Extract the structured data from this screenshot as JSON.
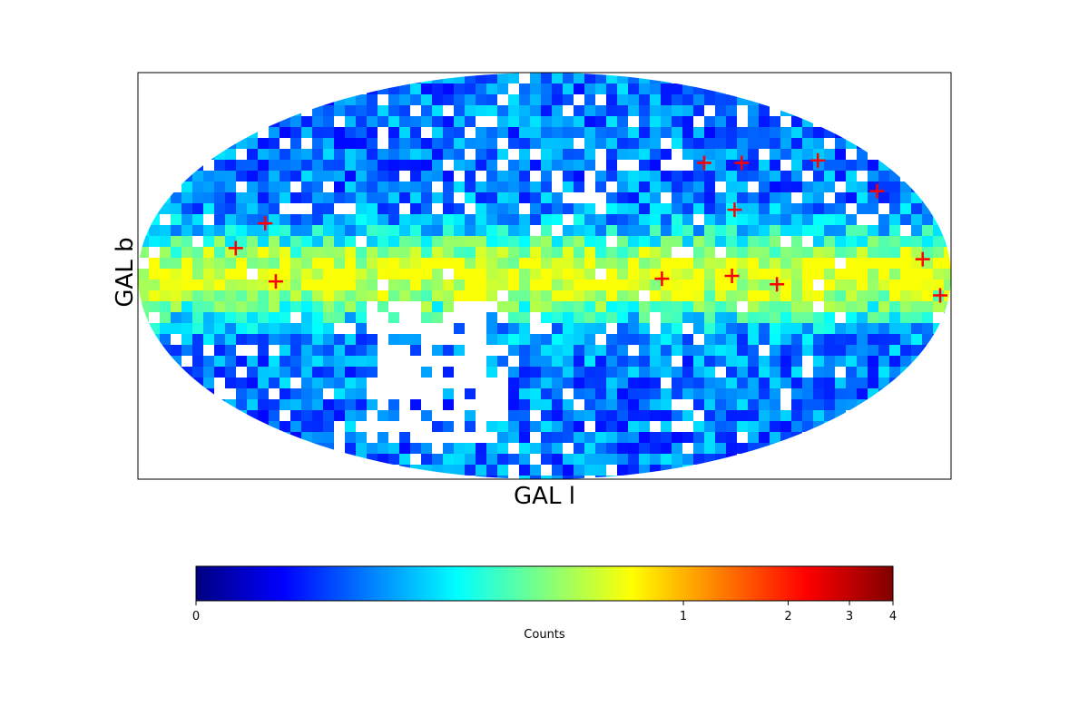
{
  "chart_data": {
    "type": "mollweide",
    "xlabel": "GAL l",
    "ylabel": "GAL b",
    "x": [
      138,
      128,
      119,
      308,
      277,
      257,
      192,
      184,
      275,
      255,
      213,
      198,
      271
    ],
    "y": [
      10,
      19,
      -2,
      -1,
      0,
      -3,
      6,
      -7,
      42,
      42,
      43,
      31,
      24
    ],
    "color": "#ff0000",
    "colormap": "jet",
    "clim": [
      0,
      4
    ],
    "cticks": [
      0,
      1,
      2,
      3,
      4
    ],
    "clabel": "Counts"
  }
}
